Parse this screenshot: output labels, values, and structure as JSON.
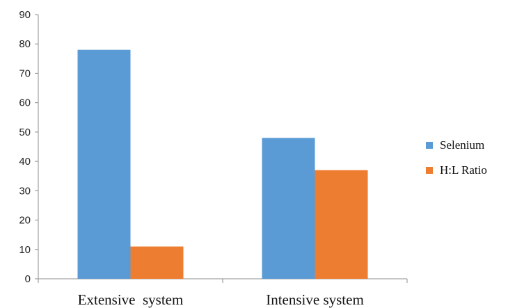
{
  "chart_data": {
    "type": "bar",
    "categories": [
      "Extensive  system",
      "Intensive system"
    ],
    "series": [
      {
        "name": "Selenium",
        "values": [
          78,
          48
        ],
        "color": "#5b9bd5"
      },
      {
        "name": "H:L Ratio",
        "values": [
          11,
          37
        ],
        "color": "#ed7d31"
      }
    ],
    "ylim": [
      0,
      90
    ],
    "yticks": [
      0,
      10,
      20,
      30,
      40,
      50,
      60,
      70,
      80,
      90
    ],
    "grid": false,
    "legend_position": "right"
  }
}
